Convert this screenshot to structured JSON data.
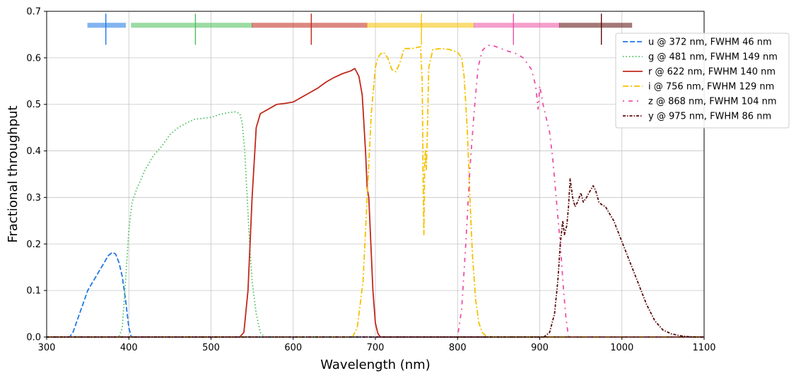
{
  "chart_data": {
    "type": "line",
    "xlabel": "Wavelength (nm)",
    "ylabel": "Fractional throughput",
    "xlim": [
      300,
      1100
    ],
    "ylim": [
      0,
      0.7
    ],
    "xticks": [
      300,
      400,
      500,
      600,
      700,
      800,
      900,
      1000,
      1100
    ],
    "yticks": [
      0.0,
      0.1,
      0.2,
      0.3,
      0.4,
      0.5,
      0.6,
      0.7
    ],
    "xtick_labels": [
      "300",
      "400",
      "500",
      "600",
      "700",
      "800",
      "900",
      "1000",
      "1100"
    ],
    "ytick_labels": [
      "0.0",
      "0.1",
      "0.2",
      "0.3",
      "0.4",
      "0.5",
      "0.6",
      "0.7"
    ],
    "grid": true,
    "legend_position": "upper-right-outside",
    "series": [
      {
        "name": "u @ 372 nm, FWHM 46 nm",
        "color": "#1f77e6",
        "dash": "dashed",
        "center": 372,
        "band": [
          350,
          396
        ],
        "x": [
          300,
          328,
          332,
          340,
          350,
          360,
          370,
          375,
          380,
          384,
          388,
          392,
          396,
          400,
          403,
          1100
        ],
        "y": [
          0,
          0,
          0.01,
          0.05,
          0.1,
          0.13,
          0.16,
          0.175,
          0.182,
          0.178,
          0.16,
          0.13,
          0.08,
          0.02,
          0,
          0
        ]
      },
      {
        "name": "g @ 481 nm, FWHM 149 nm",
        "color": "#4bbf5a",
        "dash": "dotted",
        "center": 481,
        "band": [
          403,
          550
        ],
        "x": [
          300,
          388,
          392,
          396,
          400,
          404,
          410,
          420,
          430,
          440,
          450,
          460,
          470,
          480,
          490,
          500,
          510,
          520,
          530,
          535,
          538,
          541,
          544,
          547,
          550,
          555,
          560,
          563,
          566,
          1100
        ],
        "y": [
          0,
          0,
          0.02,
          0.12,
          0.23,
          0.29,
          0.32,
          0.36,
          0.39,
          0.41,
          0.435,
          0.45,
          0.46,
          0.468,
          0.47,
          0.472,
          0.478,
          0.482,
          0.484,
          0.48,
          0.46,
          0.4,
          0.3,
          0.2,
          0.12,
          0.05,
          0.01,
          0.004,
          0,
          0
        ]
      },
      {
        "name": "r @ 622 nm, FWHM 140 nm",
        "color": "#c0281b",
        "dash": "solid",
        "center": 622,
        "band": [
          550,
          690
        ],
        "x": [
          300,
          535,
          540,
          545,
          550,
          555,
          560,
          570,
          580,
          590,
          600,
          605,
          610,
          620,
          630,
          640,
          650,
          660,
          670,
          675,
          680,
          684,
          688,
          690,
          692,
          694,
          697,
          700,
          703,
          706,
          1100
        ],
        "y": [
          0,
          0,
          0.01,
          0.1,
          0.3,
          0.45,
          0.48,
          0.49,
          0.5,
          0.502,
          0.505,
          0.51,
          0.515,
          0.525,
          0.535,
          0.548,
          0.558,
          0.566,
          0.572,
          0.577,
          0.56,
          0.52,
          0.4,
          0.32,
          0.3,
          0.22,
          0.1,
          0.03,
          0.008,
          0,
          0
        ]
      },
      {
        "name": "i @ 756 nm, FWHM 129 nm",
        "color": "#f5c100",
        "dash": "dashdot",
        "center": 756,
        "band": [
          690,
          820
        ],
        "x": [
          300,
          672,
          678,
          685,
          690,
          695,
          700,
          703,
          706,
          710,
          715,
          720,
          725,
          730,
          735,
          740,
          745,
          750,
          755,
          757,
          758,
          759,
          760,
          761,
          762,
          763,
          765,
          770,
          780,
          790,
          800,
          805,
          808,
          812,
          815,
          818,
          822,
          826,
          830,
          834,
          838,
          1100
        ],
        "y": [
          0,
          0,
          0.02,
          0.12,
          0.3,
          0.48,
          0.58,
          0.6,
          0.608,
          0.612,
          0.6,
          0.575,
          0.57,
          0.59,
          0.62,
          0.62,
          0.62,
          0.622,
          0.624,
          0.55,
          0.35,
          0.22,
          0.38,
          0.4,
          0.36,
          0.42,
          0.58,
          0.618,
          0.62,
          0.618,
          0.612,
          0.6,
          0.56,
          0.44,
          0.3,
          0.18,
          0.08,
          0.03,
          0.01,
          0.003,
          0,
          0
        ]
      },
      {
        "name": "z @ 868 nm, FWHM 104 nm",
        "color": "#ee4fa4",
        "dash": "loosedashdot",
        "center": 868,
        "band": [
          820,
          924
        ],
        "x": [
          300,
          800,
          805,
          810,
          815,
          820,
          825,
          830,
          835,
          840,
          850,
          860,
          870,
          880,
          890,
          895,
          898,
          900,
          904,
          908,
          912,
          916,
          920,
          925,
          929,
          932,
          935,
          1100
        ],
        "y": [
          0,
          0,
          0.06,
          0.2,
          0.36,
          0.48,
          0.58,
          0.615,
          0.625,
          0.628,
          0.622,
          0.615,
          0.61,
          0.6,
          0.575,
          0.54,
          0.49,
          0.54,
          0.5,
          0.47,
          0.44,
          0.38,
          0.3,
          0.2,
          0.1,
          0.04,
          0,
          0
        ]
      },
      {
        "name": "y @ 975 nm, FWHM 86 nm",
        "color": "#5c0a0a",
        "dash": "densedashdot",
        "center": 975,
        "band": [
          924,
          1012
        ],
        "x": [
          300,
          905,
          912,
          918,
          922,
          925,
          928,
          930,
          933,
          935,
          937,
          940,
          943,
          946,
          950,
          953,
          957,
          960,
          965,
          968,
          972,
          975,
          980,
          990,
          1000,
          1010,
          1020,
          1030,
          1040,
          1050,
          1060,
          1070,
          1080,
          1090,
          1100
        ],
        "y": [
          0,
          0,
          0.01,
          0.05,
          0.12,
          0.2,
          0.25,
          0.22,
          0.24,
          0.28,
          0.34,
          0.3,
          0.28,
          0.29,
          0.31,
          0.29,
          0.3,
          0.31,
          0.325,
          0.315,
          0.29,
          0.285,
          0.28,
          0.25,
          0.205,
          0.16,
          0.115,
          0.07,
          0.035,
          0.015,
          0.007,
          0.003,
          0.001,
          0,
          0
        ]
      }
    ]
  }
}
